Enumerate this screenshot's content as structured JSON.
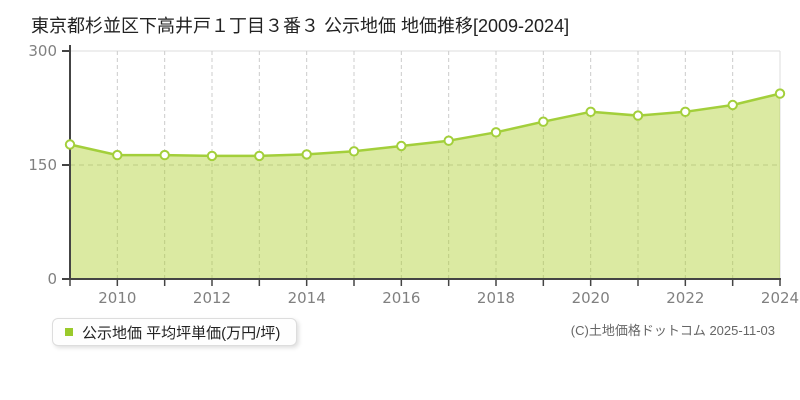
{
  "title": "東京都杉並区下高井戸１丁目３番３ 公示地価 地価推移[2009-2024]",
  "legend": {
    "label": "公示地価 平均坪単価(万円/坪)",
    "bullet_color": "#9aca2b"
  },
  "copyright": "(C)土地価格ドットコム 2025-11-03",
  "chart_data": {
    "type": "area",
    "title": "東京都杉並区下高井戸１丁目３番３ 公示地価 地価推移[2009-2024]",
    "x": [
      2009,
      2010,
      2011,
      2012,
      2013,
      2014,
      2015,
      2016,
      2017,
      2018,
      2019,
      2020,
      2021,
      2022,
      2023,
      2024
    ],
    "series": [
      {
        "name": "公示地価 平均坪単価(万円/坪)",
        "values": [
          177,
          163,
          163,
          162,
          162,
          164,
          168,
          175,
          182,
          193,
          207,
          220,
          215,
          220,
          229,
          244
        ]
      }
    ],
    "unit": "万円/坪",
    "ylim": [
      0,
      300
    ],
    "yticks": [
      0,
      150,
      300
    ],
    "xticks_labeled": [
      2010,
      2012,
      2014,
      2016,
      2018,
      2020,
      2022,
      2024
    ],
    "grid": {
      "vertical": "dashed at every year",
      "horizontal_lines": [
        150
      ],
      "style": "dashed"
    },
    "legend_position": "bottom-left",
    "colors": {
      "line": "#a3cf3b",
      "fill": "rgba(170,204,34,0.42)",
      "marker_fill": "#ffffff",
      "marker_stroke": "#a3cf3b",
      "grid": "#cccccc",
      "border": "#dddddd",
      "axis": "#444444",
      "tick_label": "#808080"
    }
  }
}
